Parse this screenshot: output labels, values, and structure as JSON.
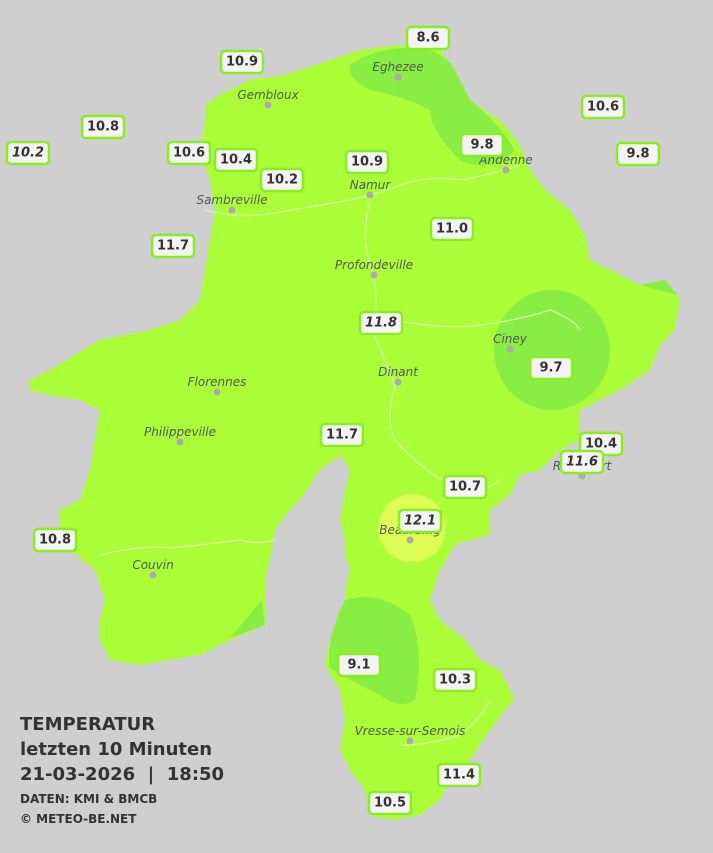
{
  "title": {
    "line1": "TEMPERATUR",
    "line2": "letzten 10 Minuten",
    "line3": "21-03-2026  |  18:50",
    "source": "DATEN: KMI & BMCB",
    "credit": "© METEO-BE.NET"
  },
  "towns": [
    "Eghezee",
    "Gembloux",
    "Andenne",
    "Namur",
    "Sambreville",
    "Profondeville",
    "Ciney",
    "Dinant",
    "Florennes",
    "Philippeville",
    "Rochefort",
    "Beauraing",
    "Couvin",
    "Vresse-sur-Semois"
  ],
  "stations": [
    "8.6",
    "10.9",
    "10.6",
    "10.8",
    "10.2",
    "10.6",
    "10.4",
    "9.8",
    "9.8",
    "10.9",
    "10.2",
    "11.0",
    "11.7",
    "11.8",
    "9.7",
    "11.7",
    "10.4",
    "11.6",
    "10.7",
    "12.1",
    "10.8",
    "9.1",
    "10.3",
    "11.4",
    "10.5"
  ]
}
